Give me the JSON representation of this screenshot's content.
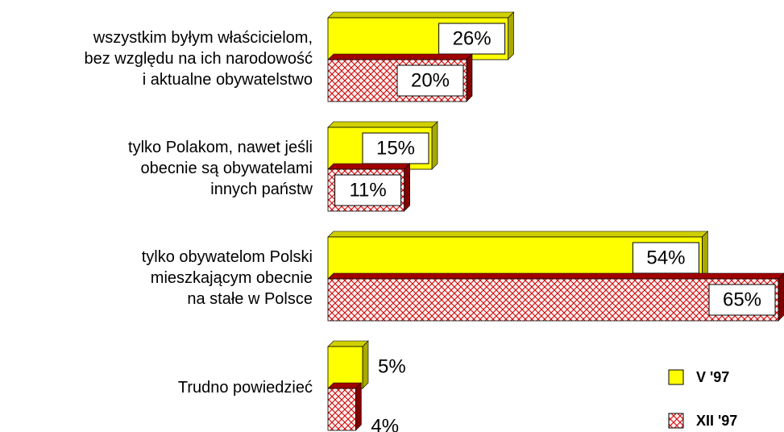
{
  "chart_data": {
    "type": "bar3d",
    "categories": [
      "wszystkim byłym właścicielom,\nbez względu na ich narodowość\ni aktualne obywatelstwo",
      "tylko Polakom, nawet jeśli\nobecnie są obywatelami\ninnych państw ",
      "tylko obywatelom Polski\nmieszkającym obecnie\nna stałe w Polsce",
      "Trudno powiedzieć"
    ],
    "series": [
      {
        "name": "V '97",
        "color": "#ffff00",
        "values": [
          26,
          15,
          54,
          5
        ],
        "value_labels": [
          "26%",
          "15%",
          "54%",
          "5%"
        ]
      },
      {
        "name": "XII '97",
        "color": "#cc0000",
        "values": [
          20,
          11,
          65,
          4
        ],
        "value_labels": [
          "20%",
          "11%",
          "65%",
          "4%"
        ]
      }
    ],
    "legend": "bottom-right"
  }
}
